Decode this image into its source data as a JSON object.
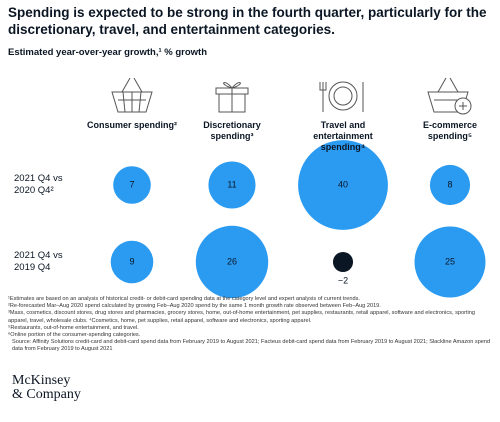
{
  "title": "Spending is expected to be strong in the fourth quarter, particularly for the discretionary, travel, and entertainment categories.",
  "chart_data": {
    "type": "bubble",
    "subtitle": "Estimated year-over-year growth,¹ % growth",
    "categories": [
      "Consumer spending²",
      "Discretionary spending³",
      "Travel and entertainment spending⁴",
      "E-commerce spending⁵"
    ],
    "series": [
      {
        "name": "2021 Q4 vs 2020 Q4²",
        "color": "#2b9bf2",
        "values": [
          7,
          11,
          40,
          8
        ]
      },
      {
        "name": "2021 Q4 vs 2019 Q4",
        "color": "#2b9bf2",
        "values": [
          9,
          26,
          -2,
          25
        ],
        "value_labels": [
          "9",
          "26",
          "−2",
          "25"
        ]
      }
    ],
    "negative_color": "#0b1624"
  },
  "footnotes": [
    "¹Estimates are based on an analysis of historical credit- or debit-card spending data at the category level and expert analysis of current trends.",
    "²Re-forecasted Mar–Aug 2020 spend calculated by growing Feb–Aug 2020 spend by the same 1 month growth rate observed between Feb–Aug 2019.",
    "³Mass, cosmetics, discount stores, drug stores and pharmacies, grocery stores, home, out-of-home entertainment, pet supplies, restaurants, retail apparel, software and electronics, sporting apparel, travel, wholesale clubs. ⁴Cosmetics, home, pet supplies, retail apparel, software and electronics, sporting apparel.",
    "⁵Restaurants, out-of-home entertainment, and travel.",
    "⁶Online portion of the consumer-spending categories.",
    "Source: Affinity Solutions credit-card and debit-card spend data from February 2019 to August 2021; Facteus debit-card spend data from February 2019 to August 2021; Slackline Amazon spend data from February 2019 to August 2021"
  ],
  "logo": [
    "McKinsey",
    "& Company"
  ]
}
